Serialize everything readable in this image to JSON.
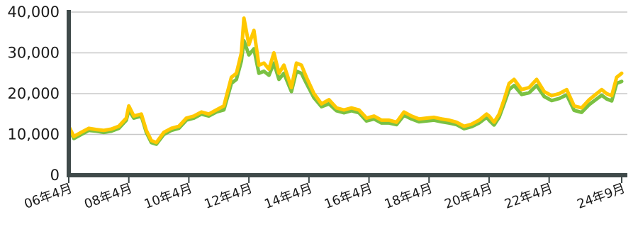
{
  "chart_data": {
    "type": "line",
    "title": "",
    "xlabel": "",
    "ylabel": "",
    "ylim": [
      0,
      40000
    ],
    "yticks": [
      {
        "value": 0,
        "label": "0"
      },
      {
        "value": 10000,
        "label": "10,000"
      },
      {
        "value": 20000,
        "label": "20,000"
      },
      {
        "value": 30000,
        "label": "30,000"
      },
      {
        "value": 40000,
        "label": "40,000"
      }
    ],
    "xticks": [
      {
        "date": "2006-04",
        "label": "06年4月"
      },
      {
        "date": "2008-04",
        "label": "08年4月"
      },
      {
        "date": "2010-04",
        "label": "10年4月"
      },
      {
        "date": "2012-04",
        "label": "12年4月"
      },
      {
        "date": "2014-04",
        "label": "14年4月"
      },
      {
        "date": "2016-04",
        "label": "16年4月"
      },
      {
        "date": "2018-04",
        "label": "18年4月"
      },
      {
        "date": "2020-04",
        "label": "20年4月"
      },
      {
        "date": "2022-04",
        "label": "22年4月"
      },
      {
        "date": "2024-09",
        "label": "24年9月"
      }
    ],
    "grid": "horizontal",
    "colors": {
      "series_a": "#ffc800",
      "series_b": "#7ac143",
      "axis": "#3f4a4a",
      "grid": "#c8c8c8"
    },
    "series": [
      {
        "name": "",
        "color": "#ffc800",
        "points": [
          [
            "2006-04",
            12000
          ],
          [
            "2006-06",
            9500
          ],
          [
            "2006-09",
            10500
          ],
          [
            "2006-12",
            11500
          ],
          [
            "2007-03",
            11200
          ],
          [
            "2007-06",
            11000
          ],
          [
            "2007-09",
            11300
          ],
          [
            "2007-12",
            12000
          ],
          [
            "2008-03",
            14000
          ],
          [
            "2008-04",
            17000
          ],
          [
            "2008-06",
            14500
          ],
          [
            "2008-09",
            15000
          ],
          [
            "2008-11",
            11000
          ],
          [
            "2009-01",
            8500
          ],
          [
            "2009-03",
            8000
          ],
          [
            "2009-06",
            10500
          ],
          [
            "2009-09",
            11500
          ],
          [
            "2009-12",
            12000
          ],
          [
            "2010-03",
            14000
          ],
          [
            "2010-06",
            14500
          ],
          [
            "2010-09",
            15500
          ],
          [
            "2010-12",
            15000
          ],
          [
            "2011-03",
            16000
          ],
          [
            "2011-06",
            17000
          ],
          [
            "2011-09",
            24000
          ],
          [
            "2011-11",
            25000
          ],
          [
            "2012-01",
            30000
          ],
          [
            "2012-02",
            38500
          ],
          [
            "2012-04",
            32000
          ],
          [
            "2012-06",
            35500
          ],
          [
            "2012-08",
            27000
          ],
          [
            "2012-10",
            27500
          ],
          [
            "2012-12",
            26000
          ],
          [
            "2013-02",
            30000
          ],
          [
            "2013-04",
            25000
          ],
          [
            "2013-06",
            27000
          ],
          [
            "2013-09",
            21500
          ],
          [
            "2013-11",
            27500
          ],
          [
            "2014-01",
            27000
          ],
          [
            "2014-03",
            24000
          ],
          [
            "2014-06",
            20000
          ],
          [
            "2014-09",
            17500
          ],
          [
            "2014-12",
            18500
          ],
          [
            "2015-03",
            16500
          ],
          [
            "2015-06",
            16000
          ],
          [
            "2015-09",
            16500
          ],
          [
            "2015-12",
            16000
          ],
          [
            "2016-03",
            14000
          ],
          [
            "2016-06",
            14500
          ],
          [
            "2016-09",
            13500
          ],
          [
            "2016-12",
            13500
          ],
          [
            "2017-03",
            13000
          ],
          [
            "2017-06",
            15500
          ],
          [
            "2017-09",
            14500
          ],
          [
            "2017-12",
            13800
          ],
          [
            "2018-03",
            14000
          ],
          [
            "2018-06",
            14200
          ],
          [
            "2018-09",
            13800
          ],
          [
            "2018-12",
            13500
          ],
          [
            "2019-03",
            13000
          ],
          [
            "2019-06",
            12000
          ],
          [
            "2019-09",
            12500
          ],
          [
            "2019-12",
            13500
          ],
          [
            "2020-03",
            15000
          ],
          [
            "2020-04",
            14500
          ],
          [
            "2020-06",
            13000
          ],
          [
            "2020-08",
            15000
          ],
          [
            "2020-10",
            18500
          ],
          [
            "2020-12",
            22500
          ],
          [
            "2021-02",
            23500
          ],
          [
            "2021-05",
            21000
          ],
          [
            "2021-08",
            21500
          ],
          [
            "2021-11",
            23500
          ],
          [
            "2022-02",
            20500
          ],
          [
            "2022-05",
            19500
          ],
          [
            "2022-08",
            20000
          ],
          [
            "2022-11",
            21000
          ],
          [
            "2023-02",
            17000
          ],
          [
            "2023-05",
            16500
          ],
          [
            "2023-08",
            18500
          ],
          [
            "2023-11",
            20000
          ],
          [
            "2024-01",
            21000
          ],
          [
            "2024-03",
            20000
          ],
          [
            "2024-05",
            19500
          ],
          [
            "2024-07",
            24000
          ],
          [
            "2024-09",
            25000
          ]
        ]
      },
      {
        "name": "",
        "color": "#7ac143",
        "points": [
          [
            "2006-04",
            11500
          ],
          [
            "2006-06",
            9000
          ],
          [
            "2006-09",
            10000
          ],
          [
            "2006-12",
            11000
          ],
          [
            "2007-03",
            10800
          ],
          [
            "2007-06",
            10500
          ],
          [
            "2007-09",
            10800
          ],
          [
            "2007-12",
            11500
          ],
          [
            "2008-03",
            13500
          ],
          [
            "2008-04",
            16000
          ],
          [
            "2008-06",
            14000
          ],
          [
            "2008-09",
            14500
          ],
          [
            "2008-11",
            10500
          ],
          [
            "2009-01",
            8000
          ],
          [
            "2009-03",
            7600
          ],
          [
            "2009-06",
            10000
          ],
          [
            "2009-09",
            11000
          ],
          [
            "2009-12",
            11500
          ],
          [
            "2010-03",
            13500
          ],
          [
            "2010-06",
            14000
          ],
          [
            "2010-09",
            15000
          ],
          [
            "2010-12",
            14500
          ],
          [
            "2011-03",
            15500
          ],
          [
            "2011-06",
            16000
          ],
          [
            "2011-09",
            22500
          ],
          [
            "2011-11",
            23500
          ],
          [
            "2012-01",
            28000
          ],
          [
            "2012-02",
            33000
          ],
          [
            "2012-04",
            29500
          ],
          [
            "2012-06",
            31000
          ],
          [
            "2012-08",
            25000
          ],
          [
            "2012-10",
            25500
          ],
          [
            "2012-12",
            24500
          ],
          [
            "2013-02",
            27500
          ],
          [
            "2013-04",
            23500
          ],
          [
            "2013-06",
            25000
          ],
          [
            "2013-09",
            20500
          ],
          [
            "2013-11",
            25500
          ],
          [
            "2014-01",
            25000
          ],
          [
            "2014-03",
            22500
          ],
          [
            "2014-06",
            19000
          ],
          [
            "2014-09",
            16800
          ],
          [
            "2014-12",
            17500
          ],
          [
            "2015-03",
            15800
          ],
          [
            "2015-06",
            15300
          ],
          [
            "2015-09",
            15800
          ],
          [
            "2015-12",
            15300
          ],
          [
            "2016-03",
            13300
          ],
          [
            "2016-06",
            13800
          ],
          [
            "2016-09",
            12800
          ],
          [
            "2016-12",
            12800
          ],
          [
            "2017-03",
            12400
          ],
          [
            "2017-06",
            14700
          ],
          [
            "2017-09",
            13800
          ],
          [
            "2017-12",
            13100
          ],
          [
            "2018-03",
            13300
          ],
          [
            "2018-06",
            13500
          ],
          [
            "2018-09",
            13100
          ],
          [
            "2018-12",
            12800
          ],
          [
            "2019-03",
            12400
          ],
          [
            "2019-06",
            11400
          ],
          [
            "2019-09",
            11900
          ],
          [
            "2019-12",
            12800
          ],
          [
            "2020-03",
            14200
          ],
          [
            "2020-04",
            13500
          ],
          [
            "2020-06",
            12300
          ],
          [
            "2020-08",
            14200
          ],
          [
            "2020-10",
            17500
          ],
          [
            "2020-12",
            21000
          ],
          [
            "2021-02",
            22000
          ],
          [
            "2021-05",
            19800
          ],
          [
            "2021-08",
            20200
          ],
          [
            "2021-11",
            22000
          ],
          [
            "2022-02",
            19300
          ],
          [
            "2022-05",
            18300
          ],
          [
            "2022-08",
            18800
          ],
          [
            "2022-11",
            19700
          ],
          [
            "2023-02",
            15900
          ],
          [
            "2023-05",
            15400
          ],
          [
            "2023-08",
            17300
          ],
          [
            "2023-11",
            18700
          ],
          [
            "2024-01",
            19600
          ],
          [
            "2024-03",
            18700
          ],
          [
            "2024-05",
            18200
          ],
          [
            "2024-07",
            22500
          ],
          [
            "2024-09",
            23000
          ]
        ]
      }
    ]
  }
}
